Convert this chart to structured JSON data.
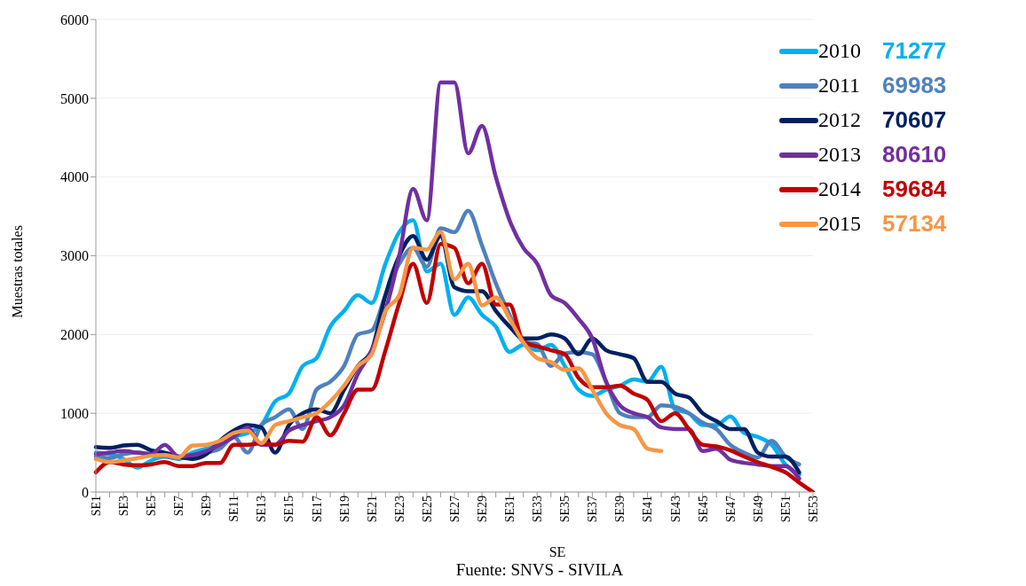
{
  "chart_data": {
    "type": "line",
    "xlabel": "SE",
    "ylabel": "Muestras totales",
    "categories": [
      "SE1",
      null,
      "SE3",
      null,
      "SE5",
      null,
      "SE7",
      null,
      "SE9",
      null,
      "SE11",
      null,
      "SE13",
      null,
      "SE15",
      null,
      "SE17",
      null,
      "SE19",
      null,
      "SE21",
      null,
      "SE23",
      null,
      "SE25",
      null,
      "SE27",
      null,
      "SE29",
      null,
      "SE31",
      null,
      "SE33",
      null,
      "SE35",
      null,
      "SE37",
      null,
      "SE39",
      null,
      "SE41",
      null,
      "SE43",
      null,
      "SE45",
      null,
      "SE47",
      null,
      "SE49",
      null,
      "SE51",
      null,
      "SE53"
    ],
    "series": [
      {
        "name": "2010",
        "color": "#00b0f0",
        "values": [
          500,
          480,
          420,
          310,
          400,
          450,
          420,
          500,
          550,
          600,
          700,
          750,
          850,
          1150,
          1250,
          1600,
          1700,
          2100,
          2300,
          2500,
          2400,
          2900,
          3300,
          3450,
          2800,
          2900,
          2250,
          2470,
          2250,
          2100,
          1780,
          1870,
          1800,
          1870,
          1600,
          1300,
          1220,
          1300,
          1350,
          1430,
          1400,
          1590,
          1050,
          1000,
          850,
          850,
          960,
          750,
          700,
          600,
          350,
          220,
          null
        ]
      },
      {
        "name": "2011",
        "color": "#4f81bd",
        "values": [
          450,
          430,
          480,
          500,
          480,
          450,
          430,
          450,
          500,
          550,
          700,
          500,
          850,
          950,
          1050,
          800,
          1300,
          1400,
          1600,
          2000,
          2050,
          2500,
          2900,
          3100,
          2860,
          3350,
          3300,
          3570,
          3130,
          2650,
          2250,
          1910,
          1880,
          1600,
          1760,
          1780,
          1750,
          1400,
          1000,
          950,
          950,
          1100,
          1080,
          1000,
          880,
          800,
          600,
          500,
          440,
          650,
          450,
          350,
          null
        ]
      },
      {
        "name": "2012",
        "color": "#002060",
        "values": [
          570,
          560,
          590,
          600,
          530,
          500,
          450,
          420,
          480,
          650,
          780,
          850,
          820,
          500,
          850,
          1000,
          1050,
          1000,
          1300,
          1600,
          1800,
          2500,
          3000,
          3250,
          2950,
          3250,
          2600,
          2550,
          2550,
          2300,
          2100,
          1950,
          1950,
          2000,
          1950,
          1750,
          1950,
          1800,
          1750,
          1700,
          1400,
          1400,
          1250,
          1200,
          1000,
          900,
          800,
          800,
          500,
          450,
          450,
          250,
          null
        ]
      },
      {
        "name": "2013",
        "color": "#7030a0",
        "values": [
          480,
          500,
          520,
          500,
          480,
          600,
          450,
          470,
          520,
          600,
          700,
          820,
          600,
          600,
          780,
          850,
          900,
          950,
          1100,
          1500,
          1800,
          2300,
          3000,
          3850,
          3450,
          5200,
          5200,
          4300,
          4650,
          4000,
          3450,
          3100,
          2900,
          2500,
          2400,
          2200,
          1950,
          1400,
          1100,
          1000,
          950,
          820,
          800,
          800,
          520,
          550,
          410,
          370,
          350,
          330,
          330,
          170,
          null
        ]
      },
      {
        "name": "2014",
        "color": "#c00000",
        "values": [
          250,
          380,
          350,
          340,
          350,
          380,
          330,
          330,
          370,
          370,
          600,
          600,
          620,
          600,
          650,
          640,
          950,
          720,
          1000,
          1300,
          1300,
          1800,
          2400,
          2900,
          2400,
          3150,
          3100,
          2650,
          2900,
          2380,
          2380,
          1910,
          1850,
          1800,
          1750,
          1450,
          1330,
          1330,
          1350,
          1250,
          1170,
          900,
          1000,
          800,
          600,
          580,
          530,
          450,
          380,
          320,
          250,
          120,
          0
        ]
      },
      {
        "name": "2015",
        "color": "#f79646",
        "values": [
          420,
          380,
          400,
          430,
          460,
          470,
          440,
          590,
          600,
          650,
          750,
          780,
          620,
          850,
          900,
          950,
          1000,
          1150,
          1350,
          1600,
          1750,
          2300,
          2500,
          3100,
          3080,
          3300,
          2700,
          2900,
          2370,
          2470,
          2200,
          1900,
          1700,
          1650,
          1550,
          1570,
          1300,
          1000,
          850,
          800,
          550,
          520,
          null,
          null,
          null,
          null,
          null,
          null,
          null,
          null,
          null,
          null,
          null
        ]
      }
    ],
    "annotations": [
      "71277",
      "69983",
      "70607",
      "80610",
      "59684",
      "57134",
      "Fuente: SNVS  - SIVILA"
    ],
    "ylim": [
      0,
      6000
    ],
    "yticks": [
      0,
      1000,
      2000,
      3000,
      4000,
      5000,
      6000
    ],
    "grid": "y",
    "legend": "top right",
    "marker": "none",
    "line_style": "solid"
  }
}
